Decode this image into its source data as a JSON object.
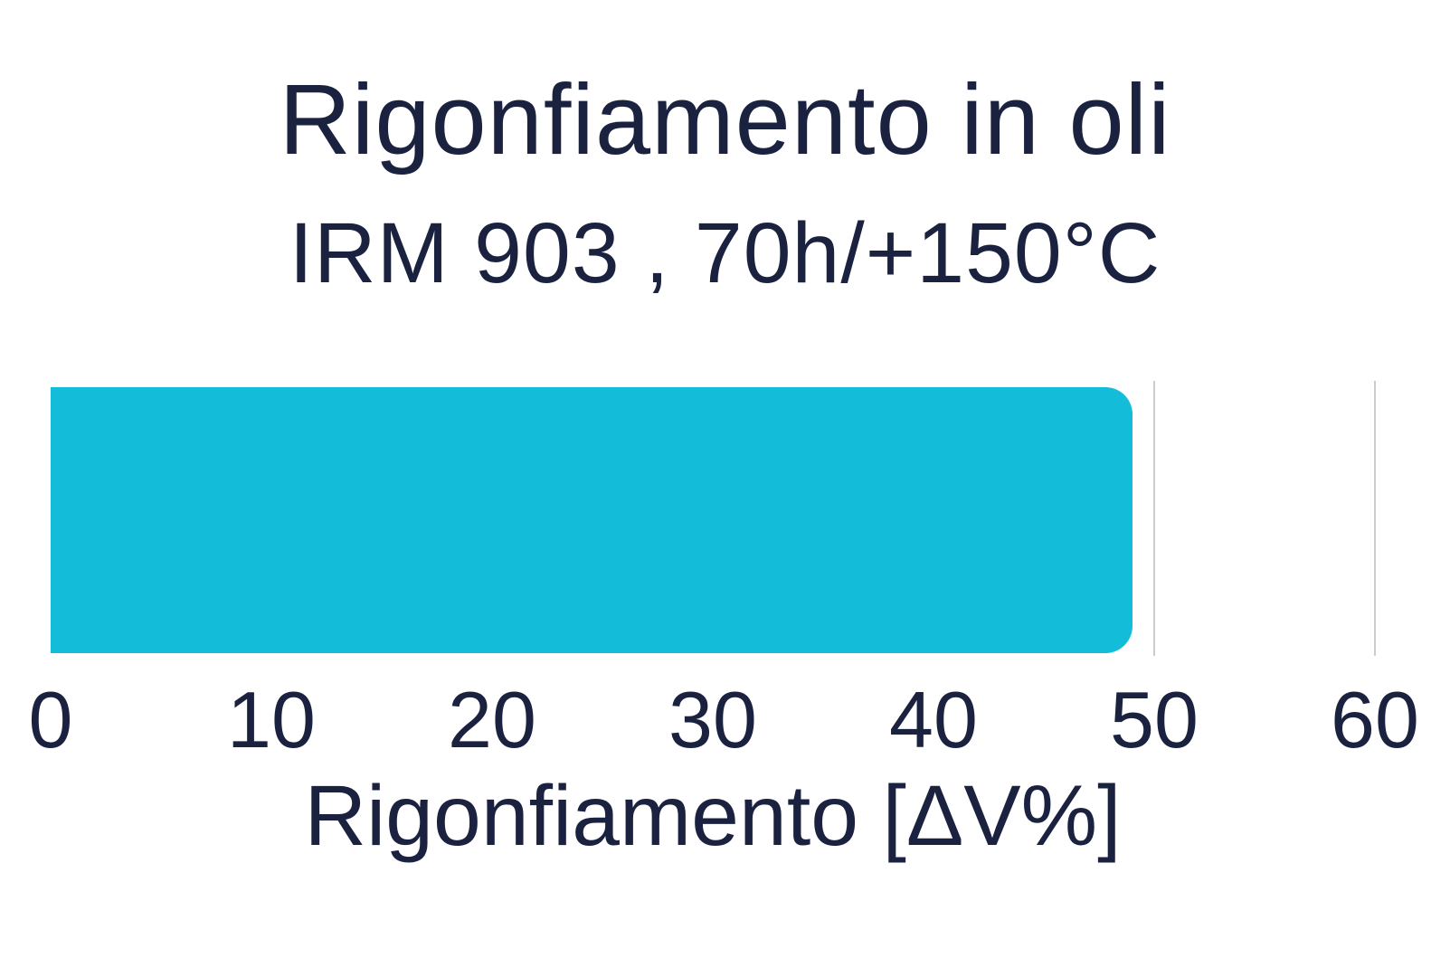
{
  "chart_data": {
    "type": "bar",
    "orientation": "horizontal",
    "title": "Rigonfiamento in oli",
    "subtitle": "IRM 903 , 70h/+150°C",
    "xlabel": "Rigonfiamento [ΔV%]",
    "values": [
      49
    ],
    "xlim": [
      0,
      60
    ],
    "xticks": [
      0,
      10,
      20,
      30,
      40,
      50,
      60
    ],
    "grid": "vertical gridlines at x ticks, visible right of bar only",
    "legend": "none",
    "bar_color": "#13bdd9",
    "text_color": "#1b2240",
    "gridline_color": "#cccccc",
    "background_color": "#ffffff"
  }
}
